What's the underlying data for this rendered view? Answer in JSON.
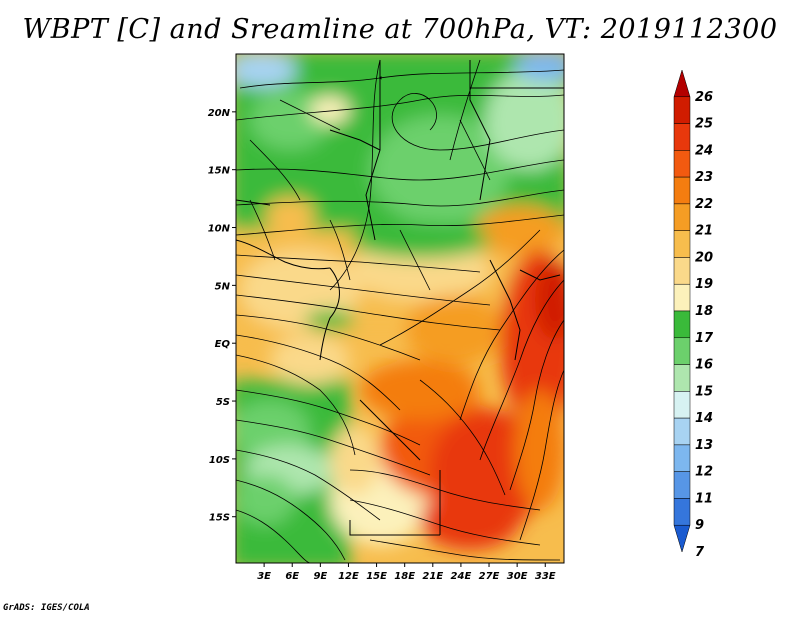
{
  "title": "WBPT [C] and Sreamline at 700hPa, VT: 2019112300",
  "credit": "GrADS: IGES/COLA",
  "map": {
    "lon_range": [
      0,
      35
    ],
    "lat_range": [
      -19,
      25
    ],
    "y_ticks": [
      {
        "label": "20N",
        "lat": 20
      },
      {
        "label": "15N",
        "lat": 15
      },
      {
        "label": "10N",
        "lat": 10
      },
      {
        "label": "5N",
        "lat": 5
      },
      {
        "label": "EQ",
        "lat": 0
      },
      {
        "label": "5S",
        "lat": -5
      },
      {
        "label": "10S",
        "lat": -10
      },
      {
        "label": "15S",
        "lat": -15
      }
    ],
    "x_ticks": [
      {
        "label": "3E",
        "lon": 3
      },
      {
        "label": "6E",
        "lon": 6
      },
      {
        "label": "9E",
        "lon": 9
      },
      {
        "label": "12E",
        "lon": 12
      },
      {
        "label": "15E",
        "lon": 15
      },
      {
        "label": "18E",
        "lon": 18
      },
      {
        "label": "21E",
        "lon": 21
      },
      {
        "label": "24E",
        "lon": 24
      },
      {
        "label": "27E",
        "lon": 27
      },
      {
        "label": "30E",
        "lon": 30
      },
      {
        "label": "33E",
        "lon": 33
      }
    ]
  },
  "colorbar": {
    "levels": [
      "26",
      "25",
      "24",
      "23",
      "22",
      "21",
      "20",
      "19",
      "18",
      "17",
      "16",
      "15",
      "14",
      "13",
      "12",
      "11",
      "9",
      "7"
    ],
    "colors": [
      "#b30000",
      "#d01c00",
      "#e8380c",
      "#f25a10",
      "#f47d10",
      "#f59d24",
      "#f7bd4d",
      "#fad98a",
      "#fcf1bb",
      "#3aba3a",
      "#6cd06c",
      "#aee6ae",
      "#d7f2f2",
      "#a8d3f2",
      "#7db7ef",
      "#5796e6",
      "#3576dc",
      "#1a5bd0"
    ]
  }
}
